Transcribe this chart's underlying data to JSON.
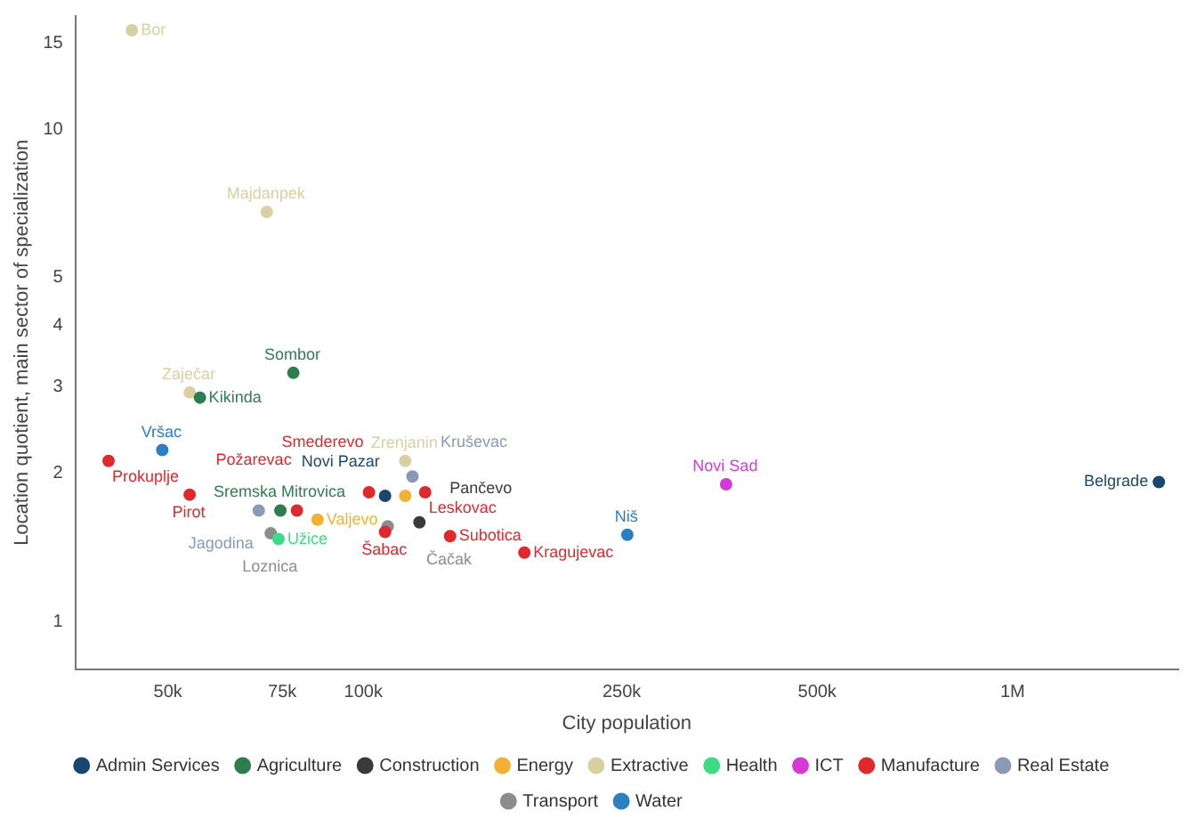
{
  "chart_data": {
    "type": "scatter",
    "xlabel": "City population",
    "ylabel": "Location quotient, main sector of specialization",
    "log": "xy",
    "marker": "circle",
    "legend": "bottom",
    "grid": false,
    "xlim": [
      36000,
      1800000
    ],
    "xticks": [
      {
        "value": 50000,
        "label": "50k"
      },
      {
        "value": 75000,
        "label": "75k"
      },
      {
        "value": 100000,
        "label": "100k"
      },
      {
        "value": 250000,
        "label": "250k"
      },
      {
        "value": 500000,
        "label": "500k"
      },
      {
        "value": 1000000,
        "label": "1M"
      }
    ],
    "ylim": [
      0.8,
      17
    ],
    "yticks": [
      1,
      2,
      3,
      4,
      5,
      10,
      15
    ],
    "series": [
      {
        "name": "Admin Services",
        "color": "#1a476f",
        "x": [
          108000,
          1680000
        ],
        "values": [
          1.8,
          1.92
        ]
      },
      {
        "name": "Agriculture",
        "color": "#2e7d4f",
        "x": [
          78000,
          56000,
          74500
        ],
        "values": [
          3.2,
          2.85,
          1.68
        ]
      },
      {
        "name": "Construction",
        "color": "#3a3a3a",
        "x": [
          122000
        ],
        "values": [
          1.59
        ]
      },
      {
        "name": "Energy",
        "color": "#f2b134",
        "x": [
          85000,
          116000
        ],
        "values": [
          1.61,
          1.8
        ]
      },
      {
        "name": "Extractive",
        "color": "#d8d0a0",
        "x": [
          44000,
          71000,
          54000,
          116000
        ],
        "values": [
          15.9,
          6.8,
          2.92,
          2.12
        ]
      },
      {
        "name": "Health",
        "color": "#3ddc84",
        "x": [
          74000
        ],
        "values": [
          1.47
        ]
      },
      {
        "name": "ICT",
        "color": "#d63ad6",
        "x": [
          362000
        ],
        "values": [
          1.9
        ]
      },
      {
        "name": "Manufacture",
        "color": "#e0282d",
        "x": [
          40500,
          54000,
          79000,
          102000,
          124500,
          108000,
          136000,
          177000
        ],
        "values": [
          2.12,
          1.81,
          1.68,
          1.83,
          1.83,
          1.52,
          1.49,
          1.38
        ]
      },
      {
        "name": "Real Estate",
        "color": "#8a9ab5",
        "x": [
          69000,
          119000
        ],
        "values": [
          1.68,
          1.97
        ]
      },
      {
        "name": "Transport",
        "color": "#8c8c8c",
        "x": [
          72000,
          109000
        ],
        "values": [
          1.51,
          1.56
        ]
      },
      {
        "name": "Water",
        "color": "#2a80c0",
        "x": [
          49000,
          255000
        ],
        "values": [
          2.23,
          1.5
        ]
      }
    ],
    "annotations": [
      {
        "text": "Novi Pazar",
        "x": 108000,
        "y": 1.8
      },
      {
        "text": "Belgrade",
        "x": 1680000,
        "y": 1.92
      },
      {
        "text": "Sombor",
        "x": 78000,
        "y": 3.2
      },
      {
        "text": "Kikinda",
        "x": 56000,
        "y": 2.85
      },
      {
        "text": "Sremska Mitrovica",
        "x": 74500,
        "y": 1.68
      },
      {
        "text": "Pančevo",
        "x": 122000,
        "y": 1.59
      },
      {
        "text": "Valjevo",
        "x": 85000,
        "y": 1.61
      },
      {
        "text": "Bor",
        "x": 44000,
        "y": 15.9
      },
      {
        "text": "Majdanpek",
        "x": 71000,
        "y": 6.8
      },
      {
        "text": "Zaječar",
        "x": 54000,
        "y": 2.92
      },
      {
        "text": "Zrenjanin",
        "x": 116000,
        "y": 2.12
      },
      {
        "text": "Užice",
        "x": 74000,
        "y": 1.47
      },
      {
        "text": "Novi Sad",
        "x": 362000,
        "y": 1.9
      },
      {
        "text": "Prokuplje",
        "x": 40500,
        "y": 2.12
      },
      {
        "text": "Pirot",
        "x": 54000,
        "y": 1.81
      },
      {
        "text": "Požarevac",
        "x": 79000,
        "y": 1.68
      },
      {
        "text": "Smederevo",
        "x": 102000,
        "y": 1.83
      },
      {
        "text": "Leskovac",
        "x": 124500,
        "y": 1.83
      },
      {
        "text": "Šabac",
        "x": 108000,
        "y": 1.52
      },
      {
        "text": "Subotica",
        "x": 136000,
        "y": 1.49
      },
      {
        "text": "Kragujevac",
        "x": 177000,
        "y": 1.38
      },
      {
        "text": "Jagodina",
        "x": 69000,
        "y": 1.68
      },
      {
        "text": "Kruševac",
        "x": 119000,
        "y": 1.97
      },
      {
        "text": "Loznica",
        "x": 72000,
        "y": 1.51
      },
      {
        "text": "Čačak",
        "x": 109000,
        "y": 1.56
      },
      {
        "text": "Vršac",
        "x": 49000,
        "y": 2.23
      },
      {
        "text": "Niš",
        "x": 255000,
        "y": 1.5
      }
    ]
  }
}
